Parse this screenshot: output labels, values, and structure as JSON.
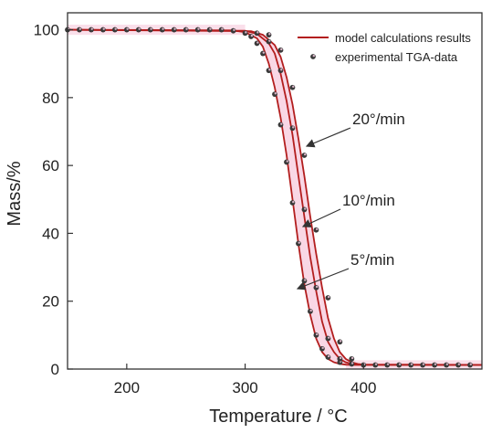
{
  "chart_data": {
    "type": "line",
    "xlabel": "Temperature / °C",
    "ylabel": "Mass/%",
    "xlim": [
      150,
      500
    ],
    "ylim": [
      0,
      105
    ],
    "xticks": [
      200,
      300,
      400
    ],
    "yticks": [
      0,
      20,
      40,
      60,
      80,
      100
    ],
    "grid": false,
    "legend_position": "top-right",
    "legend": [
      {
        "label": "model calculations results",
        "kind": "line"
      },
      {
        "label": "experimental TGA-data",
        "kind": "marker"
      }
    ],
    "annotations": [
      {
        "text": "20°/min",
        "series_index": 2
      },
      {
        "text": "10°/min",
        "series_index": 1
      },
      {
        "text": "5°/min",
        "series_index": 0
      }
    ],
    "series": [
      {
        "name": "5°/min",
        "model": {
          "x": [
            150,
            290,
            300,
            310,
            315,
            320,
            325,
            330,
            335,
            340,
            345,
            350,
            355,
            360,
            365,
            370,
            375,
            380,
            385,
            390,
            500
          ],
          "y": [
            100,
            99.8,
            99.3,
            97.5,
            95,
            90,
            83,
            74,
            63,
            50,
            37,
            25,
            16,
            9,
            5,
            3,
            2,
            1.5,
            1.3,
            1.2,
            1.2
          ]
        },
        "experimental": {
          "x": [
            150,
            160,
            170,
            180,
            190,
            200,
            210,
            220,
            230,
            240,
            250,
            260,
            270,
            280,
            290,
            300,
            305,
            310,
            315,
            320,
            325,
            330,
            335,
            340,
            345,
            350,
            355,
            360,
            365,
            370,
            380,
            390,
            400,
            410,
            420,
            430,
            440,
            450,
            460,
            470,
            480,
            490
          ],
          "y": [
            100,
            100,
            100,
            100,
            100,
            100,
            100,
            100,
            100,
            100,
            100,
            100,
            100,
            100,
            99.7,
            99,
            98,
            96,
            93,
            88,
            81,
            72,
            61,
            49,
            37,
            26,
            17,
            10,
            6,
            3.5,
            2,
            1.5,
            1.2,
            1.2,
            1.2,
            1.2,
            1.2,
            1.2,
            1.2,
            1.2,
            1.2,
            1.2
          ]
        }
      },
      {
        "name": "10°/min",
        "model": {
          "x": [
            150,
            300,
            310,
            320,
            325,
            330,
            335,
            340,
            345,
            350,
            355,
            360,
            365,
            370,
            375,
            380,
            385,
            390,
            395,
            500
          ],
          "y": [
            100,
            99.7,
            98.8,
            96,
            93,
            87,
            79,
            69,
            57,
            45,
            33,
            23,
            14,
            8,
            5,
            3,
            2,
            1.5,
            1.3,
            1.2
          ]
        },
        "experimental": {
          "x": [
            310,
            320,
            330,
            340,
            350,
            360,
            370,
            380
          ],
          "y": [
            99,
            96.5,
            88,
            71,
            47,
            24,
            9,
            3
          ]
        }
      },
      {
        "name": "20°/min",
        "model": {
          "x": [
            150,
            305,
            315,
            325,
            330,
            335,
            340,
            345,
            350,
            355,
            360,
            365,
            370,
            375,
            380,
            385,
            390,
            395,
            400,
            500
          ],
          "y": [
            100,
            99.6,
            98.5,
            95.5,
            92,
            86,
            78,
            68,
            57,
            45,
            34,
            24,
            15,
            9,
            5,
            3,
            2,
            1.5,
            1.3,
            1.2
          ]
        },
        "experimental": {
          "x": [
            320,
            330,
            340,
            350,
            360,
            370,
            380,
            390
          ],
          "y": [
            98.5,
            94,
            83,
            63,
            41,
            21,
            8,
            3
          ]
        }
      }
    ],
    "colors": {
      "model_line": "#b31e1e",
      "band_fill": "#f7c9dc",
      "marker_fill": "#3a3a3a",
      "marker_highlight": "#d9b3c6",
      "arrow": "#333333",
      "axis": "#333333"
    }
  }
}
